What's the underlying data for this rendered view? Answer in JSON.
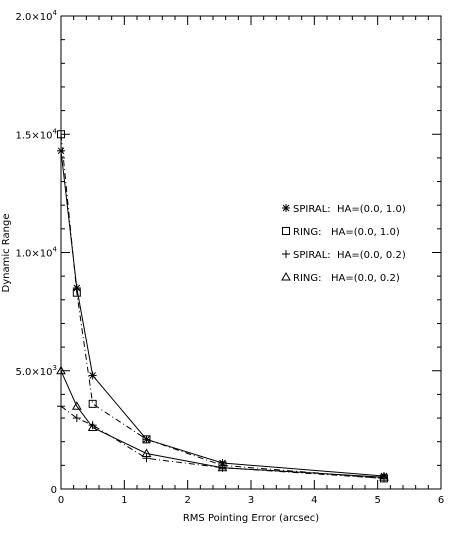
{
  "chart_data": {
    "type": "line",
    "xlabel": "RMS Pointing Error (arcsec)",
    "ylabel": "Dynamic Range",
    "xlim": [
      0,
      6
    ],
    "ylim": [
      0,
      20000
    ],
    "x_ticks": [
      "0",
      "1",
      "2",
      "3",
      "4",
      "5",
      "6"
    ],
    "y_ticks": [
      {
        "value": 0,
        "mantissa": "0",
        "exponent": ""
      },
      {
        "value": 5000,
        "mantissa": "5.0×10",
        "exponent": "3"
      },
      {
        "value": 10000,
        "mantissa": "1.0×10",
        "exponent": "4"
      },
      {
        "value": 15000,
        "mantissa": "1.5×10",
        "exponent": "4"
      },
      {
        "value": 20000,
        "mantissa": "2.0×10",
        "exponent": "4"
      }
    ],
    "grid": false,
    "legend_position": "right-center",
    "series": [
      {
        "name": "SPIRAL:  HA=(0.0, 1.0)",
        "marker": "asterisk",
        "line": "solid",
        "x": [
          0,
          0.25,
          0.5,
          1.35,
          2.55,
          5.1
        ],
        "y": [
          14300,
          8500,
          4800,
          2100,
          1100,
          550
        ]
      },
      {
        "name": "RING:   HA=(0.0, 1.0)",
        "marker": "square",
        "line": "dashdot",
        "x": [
          0,
          0.25,
          0.5,
          1.35,
          2.55,
          5.1
        ],
        "y": [
          15000,
          8300,
          3600,
          2100,
          1000,
          450
        ]
      },
      {
        "name": "SPIRAL:  HA=(0.0, 0.2)",
        "marker": "plus",
        "line": "dashdot",
        "x": [
          0,
          0.25,
          0.5,
          1.35,
          2.55,
          5.1
        ],
        "y": [
          3500,
          3000,
          2700,
          1300,
          900,
          450
        ]
      },
      {
        "name": "RING:   HA=(0.0, 0.2)",
        "marker": "triangle",
        "line": "solid",
        "x": [
          0,
          0.25,
          0.5,
          1.35,
          2.55,
          5.1
        ],
        "y": [
          5000,
          3500,
          2600,
          1500,
          900,
          500
        ]
      }
    ]
  }
}
